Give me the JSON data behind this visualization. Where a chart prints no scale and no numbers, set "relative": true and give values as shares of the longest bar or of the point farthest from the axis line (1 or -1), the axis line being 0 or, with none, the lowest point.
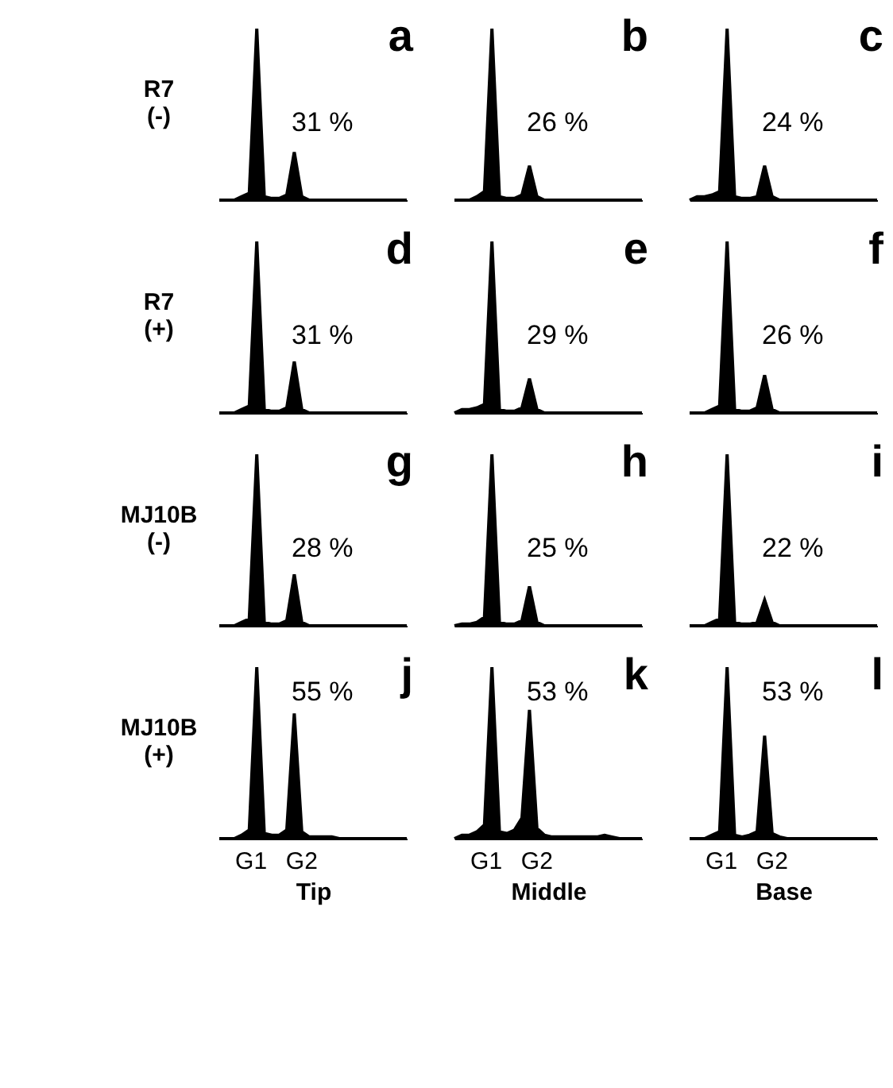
{
  "chart_data": [
    {
      "type": "area",
      "relative": true,
      "title": "a",
      "ylabel": "R7 (-)",
      "tick_labels": false,
      "annotations": [
        "31 %"
      ],
      "categories": [
        null,
        null,
        null,
        null,
        null,
        null,
        null,
        null,
        null,
        null,
        null,
        null,
        null,
        null,
        null,
        null,
        null,
        null,
        null,
        null,
        null,
        null,
        null,
        null,
        null,
        null
      ],
      "series": [
        {
          "color": "#000000",
          "values": [
            0,
            0,
            0,
            0.02,
            0.04,
            1,
            0.02,
            0.01,
            0.01,
            0.03,
            0.28,
            0.02,
            0,
            0,
            0,
            0,
            0,
            0,
            0,
            0,
            0,
            0,
            0,
            0,
            0,
            0
          ]
        }
      ]
    },
    {
      "type": "area",
      "relative": true,
      "title": "b",
      "tick_labels": false,
      "annotations": [
        "26 %"
      ],
      "categories": [
        null,
        null,
        null,
        null,
        null,
        null,
        null,
        null,
        null,
        null,
        null,
        null,
        null,
        null,
        null,
        null,
        null,
        null,
        null,
        null,
        null,
        null,
        null,
        null,
        null,
        null
      ],
      "series": [
        {
          "color": "#000000",
          "values": [
            0,
            0,
            0,
            0.02,
            0.05,
            1,
            0.02,
            0.01,
            0.01,
            0.03,
            0.2,
            0.02,
            0,
            0,
            0,
            0,
            0,
            0,
            0,
            0,
            0,
            0,
            0,
            0,
            0,
            0
          ]
        }
      ]
    },
    {
      "type": "area",
      "relative": true,
      "title": "c",
      "tick_labels": false,
      "annotations": [
        "24 %"
      ],
      "categories": [
        null,
        null,
        null,
        null,
        null,
        null,
        null,
        null,
        null,
        null,
        null,
        null,
        null,
        null,
        null,
        null,
        null,
        null,
        null,
        null,
        null,
        null,
        null,
        null,
        null,
        null
      ],
      "series": [
        {
          "color": "#000000",
          "values": [
            0,
            0.02,
            0.02,
            0.03,
            0.05,
            1,
            0.02,
            0.01,
            0.01,
            0.02,
            0.2,
            0.02,
            0,
            0,
            0,
            0,
            0,
            0,
            0,
            0,
            0,
            0,
            0,
            0,
            0,
            0
          ]
        }
      ]
    },
    {
      "type": "area",
      "relative": true,
      "title": "d",
      "ylabel": "R7 (+)",
      "tick_labels": false,
      "annotations": [
        "31 %"
      ],
      "categories": [
        null,
        null,
        null,
        null,
        null,
        null,
        null,
        null,
        null,
        null,
        null,
        null,
        null,
        null,
        null,
        null,
        null,
        null,
        null,
        null,
        null,
        null,
        null,
        null,
        null,
        null
      ],
      "series": [
        {
          "color": "#000000",
          "values": [
            0,
            0,
            0,
            0.02,
            0.04,
            1,
            0.02,
            0.01,
            0.01,
            0.03,
            0.3,
            0.02,
            0,
            0,
            0,
            0,
            0,
            0,
            0,
            0,
            0,
            0,
            0,
            0,
            0,
            0
          ]
        }
      ]
    },
    {
      "type": "area",
      "relative": true,
      "title": "e",
      "tick_labels": false,
      "annotations": [
        "29 %"
      ],
      "categories": [
        null,
        null,
        null,
        null,
        null,
        null,
        null,
        null,
        null,
        null,
        null,
        null,
        null,
        null,
        null,
        null,
        null,
        null,
        null,
        null,
        null,
        null,
        null,
        null,
        null,
        null
      ],
      "series": [
        {
          "color": "#000000",
          "values": [
            0,
            0.02,
            0.02,
            0.03,
            0.05,
            1,
            0.02,
            0.01,
            0.01,
            0.03,
            0.2,
            0.02,
            0,
            0,
            0,
            0,
            0,
            0,
            0,
            0,
            0,
            0,
            0,
            0,
            0,
            0
          ]
        }
      ]
    },
    {
      "type": "area",
      "relative": true,
      "title": "f",
      "tick_labels": false,
      "annotations": [
        "26 %"
      ],
      "categories": [
        null,
        null,
        null,
        null,
        null,
        null,
        null,
        null,
        null,
        null,
        null,
        null,
        null,
        null,
        null,
        null,
        null,
        null,
        null,
        null,
        null,
        null,
        null,
        null,
        null,
        null
      ],
      "series": [
        {
          "color": "#000000",
          "values": [
            0,
            0,
            0,
            0.02,
            0.04,
            1,
            0.02,
            0.01,
            0.01,
            0.03,
            0.22,
            0.02,
            0,
            0,
            0,
            0,
            0,
            0,
            0,
            0,
            0,
            0,
            0,
            0,
            0,
            0
          ]
        }
      ]
    },
    {
      "type": "area",
      "relative": true,
      "title": "g",
      "ylabel": "MJ10B (-)",
      "tick_labels": false,
      "annotations": [
        "28 %"
      ],
      "categories": [
        null,
        null,
        null,
        null,
        null,
        null,
        null,
        null,
        null,
        null,
        null,
        null,
        null,
        null,
        null,
        null,
        null,
        null,
        null,
        null,
        null,
        null,
        null,
        null,
        null,
        null
      ],
      "series": [
        {
          "color": "#000000",
          "values": [
            0,
            0,
            0,
            0.02,
            0.04,
            1,
            0.02,
            0.01,
            0.01,
            0.03,
            0.3,
            0.02,
            0,
            0,
            0,
            0,
            0,
            0,
            0,
            0,
            0,
            0,
            0,
            0,
            0,
            0
          ]
        }
      ]
    },
    {
      "type": "area",
      "relative": true,
      "title": "h",
      "tick_labels": false,
      "annotations": [
        "25 %"
      ],
      "categories": [
        null,
        null,
        null,
        null,
        null,
        null,
        null,
        null,
        null,
        null,
        null,
        null,
        null,
        null,
        null,
        null,
        null,
        null,
        null,
        null,
        null,
        null,
        null,
        null,
        null,
        null
      ],
      "series": [
        {
          "color": "#000000",
          "values": [
            0,
            0.01,
            0.01,
            0.02,
            0.05,
            1,
            0.02,
            0.01,
            0.01,
            0.03,
            0.23,
            0.02,
            0,
            0,
            0,
            0,
            0,
            0,
            0,
            0,
            0,
            0,
            0,
            0,
            0,
            0
          ]
        }
      ]
    },
    {
      "type": "area",
      "relative": true,
      "title": "i",
      "tick_labels": false,
      "annotations": [
        "22 %"
      ],
      "categories": [
        null,
        null,
        null,
        null,
        null,
        null,
        null,
        null,
        null,
        null,
        null,
        null,
        null,
        null,
        null,
        null,
        null,
        null,
        null,
        null,
        null,
        null,
        null,
        null,
        null,
        null
      ],
      "series": [
        {
          "color": "#000000",
          "values": [
            0,
            0,
            0,
            0.02,
            0.04,
            1,
            0.02,
            0.01,
            0.01,
            0.02,
            0.15,
            0.02,
            0,
            0,
            0,
            0,
            0,
            0,
            0,
            0,
            0,
            0,
            0,
            0,
            0,
            0
          ]
        }
      ]
    },
    {
      "type": "area",
      "relative": true,
      "title": "j",
      "ylabel": "MJ10B (+)",
      "xlabel": "Tip",
      "tick_labels": false,
      "annotations": [
        "55 %",
        "G1",
        "G2"
      ],
      "categories": [
        null,
        null,
        null,
        null,
        null,
        null,
        null,
        null,
        null,
        null,
        null,
        null,
        null,
        null,
        null,
        null,
        null,
        null,
        null,
        null,
        null,
        null,
        null,
        null,
        null,
        null
      ],
      "series": [
        {
          "color": "#000000",
          "values": [
            0,
            0,
            0,
            0.02,
            0.05,
            1,
            0.03,
            0.02,
            0.02,
            0.05,
            0.73,
            0.04,
            0.01,
            0.01,
            0.01,
            0.01,
            0,
            0,
            0,
            0,
            0,
            0,
            0,
            0,
            0,
            0
          ]
        }
      ]
    },
    {
      "type": "area",
      "relative": true,
      "title": "k",
      "xlabel": "Middle",
      "tick_labels": false,
      "annotations": [
        "53 %",
        "G1",
        "G2"
      ],
      "categories": [
        null,
        null,
        null,
        null,
        null,
        null,
        null,
        null,
        null,
        null,
        null,
        null,
        null,
        null,
        null,
        null,
        null,
        null,
        null,
        null,
        null,
        null,
        null,
        null,
        null,
        null
      ],
      "series": [
        {
          "color": "#000000",
          "values": [
            0,
            0.02,
            0.02,
            0.04,
            0.08,
            1,
            0.04,
            0.03,
            0.05,
            0.12,
            0.75,
            0.06,
            0.02,
            0.01,
            0.01,
            0.01,
            0.01,
            0.01,
            0.01,
            0.01,
            0.02,
            0.01,
            0,
            0,
            0,
            0
          ]
        }
      ]
    },
    {
      "type": "area",
      "relative": true,
      "title": "l",
      "xlabel": "Base",
      "tick_labels": false,
      "annotations": [
        "53 %",
        "G1",
        "G2"
      ],
      "categories": [
        null,
        null,
        null,
        null,
        null,
        null,
        null,
        null,
        null,
        null,
        null,
        null,
        null,
        null,
        null,
        null,
        null,
        null,
        null,
        null,
        null,
        null,
        null,
        null,
        null,
        null
      ],
      "series": [
        {
          "color": "#000000",
          "values": [
            0,
            0,
            0,
            0.02,
            0.04,
            1,
            0.02,
            0.01,
            0.02,
            0.04,
            0.6,
            0.03,
            0.01,
            0,
            0,
            0,
            0,
            0,
            0,
            0,
            0,
            0,
            0,
            0,
            0,
            0
          ]
        }
      ]
    }
  ]
}
